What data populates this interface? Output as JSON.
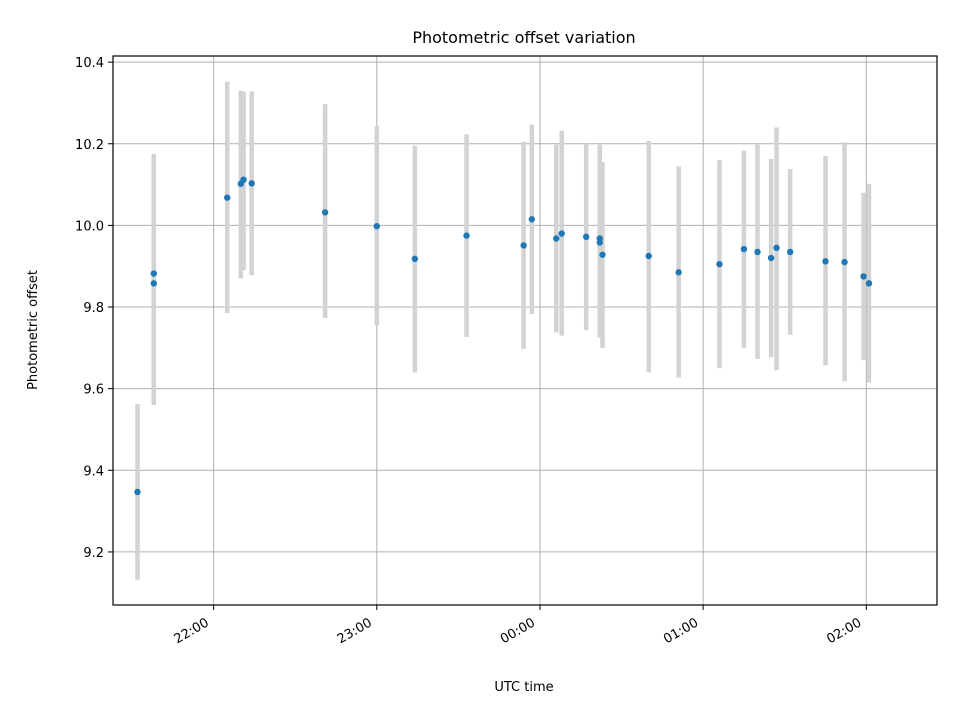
{
  "chart_data": {
    "type": "scatter",
    "title": "Photometric offset variation",
    "xlabel": "UTC time",
    "ylabel": "Photometric offset",
    "x_unit": "UTC time of night",
    "xlim": [
      "21:23",
      "02:26"
    ],
    "ylim": [
      9.07,
      10.415
    ],
    "grid": true,
    "x_ticks": [
      "22:00",
      "23:00",
      "00:00",
      "01:00",
      "02:00"
    ],
    "y_ticks": [
      "9.2",
      "9.4",
      "9.6",
      "9.8",
      "10.0",
      "10.2",
      "10.4"
    ],
    "colors": {
      "point": "#1f77b4",
      "errorbar": "#d3d3d3"
    },
    "points": [
      {
        "t": "21:32",
        "y": 9.347,
        "lo": 9.132,
        "hi": 9.562
      },
      {
        "t": "21:38",
        "y": 9.858,
        "lo": 9.56,
        "hi": 10.172
      },
      {
        "t": "21:38",
        "y": 9.882,
        "lo": 9.58,
        "hi": 10.175
      },
      {
        "t": "22:05",
        "y": 10.068,
        "lo": 9.785,
        "hi": 10.352
      },
      {
        "t": "22:10",
        "y": 10.102,
        "lo": 9.87,
        "hi": 10.33
      },
      {
        "t": "22:11",
        "y": 10.112,
        "lo": 9.89,
        "hi": 10.328
      },
      {
        "t": "22:14",
        "y": 10.103,
        "lo": 9.878,
        "hi": 10.328
      },
      {
        "t": "22:41",
        "y": 10.032,
        "lo": 9.773,
        "hi": 10.297
      },
      {
        "t": "23:00",
        "y": 9.998,
        "lo": 9.755,
        "hi": 10.243
      },
      {
        "t": "23:14",
        "y": 9.918,
        "lo": 9.64,
        "hi": 10.195
      },
      {
        "t": "23:33",
        "y": 9.975,
        "lo": 9.727,
        "hi": 10.223
      },
      {
        "t": "23:54",
        "y": 9.951,
        "lo": 9.697,
        "hi": 10.205
      },
      {
        "t": "23:57",
        "y": 10.015,
        "lo": 9.783,
        "hi": 10.247
      },
      {
        "t": "00:06",
        "y": 9.968,
        "lo": 9.738,
        "hi": 10.198
      },
      {
        "t": "00:08",
        "y": 9.98,
        "lo": 9.73,
        "hi": 10.232
      },
      {
        "t": "00:17",
        "y": 9.972,
        "lo": 9.743,
        "hi": 10.2
      },
      {
        "t": "00:22",
        "y": 9.958,
        "lo": 9.725,
        "hi": 10.197
      },
      {
        "t": "00:22",
        "y": 9.968,
        "lo": 9.738,
        "hi": 10.198
      },
      {
        "t": "00:23",
        "y": 9.928,
        "lo": 9.7,
        "hi": 10.155
      },
      {
        "t": "00:40",
        "y": 9.925,
        "lo": 9.64,
        "hi": 10.207
      },
      {
        "t": "00:51",
        "y": 9.885,
        "lo": 9.627,
        "hi": 10.145
      },
      {
        "t": "01:06",
        "y": 9.905,
        "lo": 9.65,
        "hi": 10.16
      },
      {
        "t": "01:15",
        "y": 9.942,
        "lo": 9.7,
        "hi": 10.183
      },
      {
        "t": "01:20",
        "y": 9.935,
        "lo": 9.673,
        "hi": 10.198
      },
      {
        "t": "01:25",
        "y": 9.92,
        "lo": 9.677,
        "hi": 10.163
      },
      {
        "t": "01:27",
        "y": 9.945,
        "lo": 9.645,
        "hi": 10.24
      },
      {
        "t": "01:32",
        "y": 9.935,
        "lo": 9.732,
        "hi": 10.138
      },
      {
        "t": "01:45",
        "y": 9.912,
        "lo": 9.657,
        "hi": 10.17
      },
      {
        "t": "01:52",
        "y": 9.91,
        "lo": 9.618,
        "hi": 10.203
      },
      {
        "t": "01:59",
        "y": 9.875,
        "lo": 9.67,
        "hi": 10.08
      },
      {
        "t": "02:01",
        "y": 9.858,
        "lo": 9.615,
        "hi": 10.102
      }
    ]
  }
}
